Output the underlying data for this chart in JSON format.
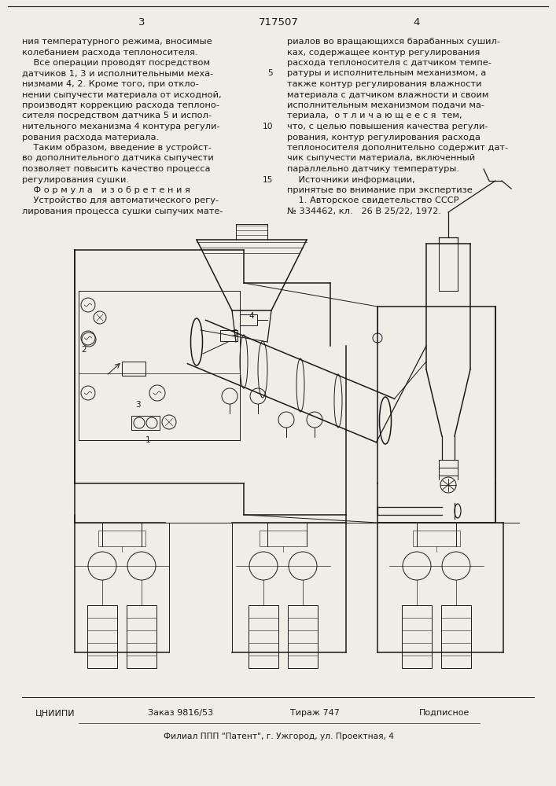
{
  "page_number_left": "3",
  "patent_number": "717507",
  "page_number_right": "4",
  "col_left_text": [
    "ния температурного режима, вносимые",
    "колебанием расхода теплоносителя.",
    "    Все операции проводят посредством",
    "датчиков 1, 3 и исполнительными меха-",
    "низмами 4, 2. Кроме того, при откло-",
    "нении сыпучести материала от исходной,",
    "производят коррекцию расхода теплоно-",
    "сителя посредством датчика 5 и испол-",
    "нительного механизма 4 контура регули-",
    "рования расхода материала.",
    "    Таким образом, введение в устройст-",
    "во дополнительного датчика сыпучести",
    "позволяет повысить качество процесса",
    "регулирования сушки.",
    "    Ф о р м у л а   и з о б р е т е н и я",
    "    Устройство для автоматического регу-",
    "лирования процесса сушки сыпучих мате-"
  ],
  "col_right_text": [
    "риалов во вращающихся барабанных сушил-",
    "ках, содержащее контур регулирования",
    "расхода теплоносителя с датчиком темпе-",
    "ратуры и исполнительным механизмом, а",
    "также контур регулирования влажности",
    "материала с датчиком влажности и своим",
    "исполнительным механизмом подачи ма-",
    "териала,  о т л и ч а ю щ е е с я  тем,",
    "что, с целью повышения качества регули-",
    "рования, контур регулирования расхода",
    "теплоносителя дополнительно содержит дат-",
    "чик сыпучести материала, включенный",
    "параллельно датчику температуры.",
    "    Источники информации,",
    "принятые во внимание при экспертизе",
    "    1. Авторское свидетельство СССР",
    "№ 334462, кл.   26 В 25/22, 1972."
  ],
  "footer_org": "ЦНИИПИ",
  "footer_order": "Заказ 9816/53",
  "footer_circulation": "Тираж 747",
  "footer_subscription": "Подписное",
  "footer_branch": "Филиал ППП \"Патент\", г. Ужгород, ул. Проектная, 4",
  "background_color": "#f0ede6",
  "text_color": "#1a1a1a",
  "font_size_body": 8.2,
  "font_size_header": 9.5,
  "font_size_footer": 8.0
}
